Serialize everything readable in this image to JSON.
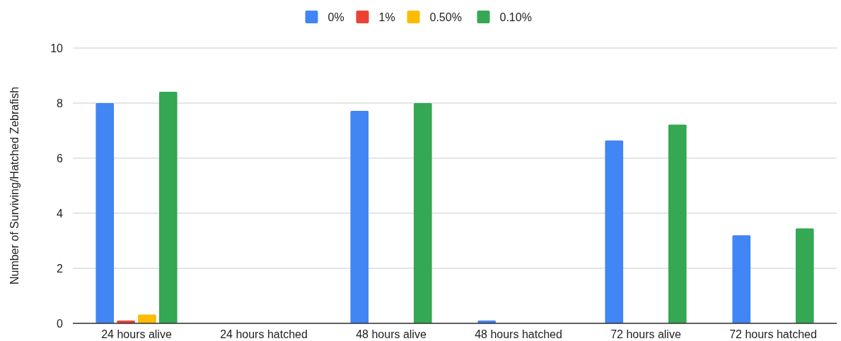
{
  "chart_data": {
    "type": "bar",
    "ylabel": "Number of Surviving/Hatched Zebrafish",
    "categories": [
      "24 hours alive",
      "24 hours hatched",
      "48 hours alive",
      "48 hours hatched",
      "72 hours alive",
      "72 hours hatched"
    ],
    "series": [
      {
        "name": "0%",
        "color": "#4285f4",
        "values": [
          8.0,
          0,
          7.72,
          0.1,
          6.64,
          3.2
        ]
      },
      {
        "name": "1%",
        "color": "#ea4335",
        "values": [
          0.1,
          0,
          0,
          0,
          0,
          0
        ]
      },
      {
        "name": "0.50%",
        "color": "#fbbc04",
        "values": [
          0.32,
          0,
          0,
          0,
          0,
          0
        ]
      },
      {
        "name": "0.10%",
        "color": "#34a853",
        "values": [
          8.41,
          0,
          8.0,
          0,
          7.22,
          3.45
        ]
      }
    ],
    "ylim": [
      0,
      10
    ],
    "yticks": [
      0,
      2,
      4,
      6,
      8,
      10
    ],
    "grid": "y",
    "legend": "top"
  }
}
